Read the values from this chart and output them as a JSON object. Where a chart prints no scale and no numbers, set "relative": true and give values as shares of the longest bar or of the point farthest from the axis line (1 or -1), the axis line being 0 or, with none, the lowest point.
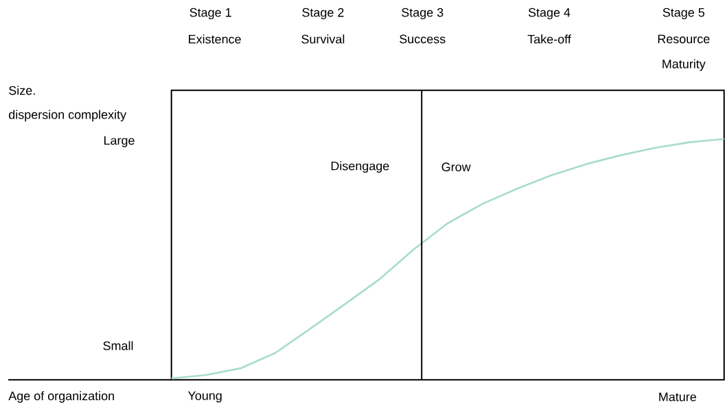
{
  "chart_data": {
    "type": "line",
    "relative": true,
    "categories": [
      null,
      null,
      null,
      null,
      null,
      null,
      null,
      null,
      null,
      null,
      null,
      null,
      null,
      null,
      null,
      null,
      null
    ],
    "series": [
      {
        "color": "#a8dccb",
        "values": [
          0.006,
          0.02,
          0.048,
          0.111,
          0.21,
          0.312,
          0.415,
          0.54,
          0.65,
          0.73,
          0.793,
          0.849,
          0.895,
          0.932,
          0.963,
          0.986,
          1
        ]
      }
    ],
    "annotations": [
      "Stage 1",
      "Existence",
      "Stage 2",
      "Survival",
      "Stage 3",
      "Success",
      "Stage 4",
      "Take-off",
      "Stage 5",
      "Resource",
      "Maturity",
      "Size.",
      "dispersion complexity",
      "Large",
      "Small",
      "Disengage",
      "Grow",
      "Age of organization",
      "Young",
      "Mature"
    ]
  }
}
